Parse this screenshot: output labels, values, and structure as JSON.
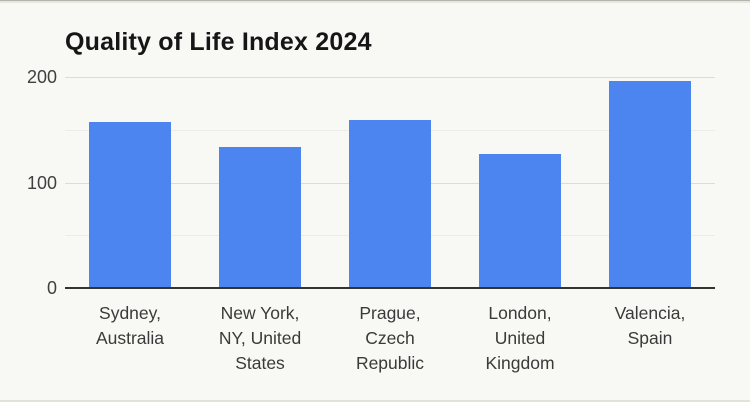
{
  "page": {
    "background": "#ffffff",
    "card_background": "#f8f8f5",
    "card_top_border": "#b3b3ad",
    "card_bottom_border": "#e2e2da"
  },
  "chart_data": {
    "type": "bar",
    "title": "Quality of Life Index 2024",
    "categories": [
      "Sydney, Australia",
      "New York, NY, United States",
      "Prague, Czech Republic",
      "London, United Kingdom",
      "Valencia, Spain"
    ],
    "category_label_lines": [
      [
        "Sydney,",
        "Australia"
      ],
      [
        "New York,",
        "NY, United",
        "States"
      ],
      [
        "Prague,",
        "Czech",
        "Republic"
      ],
      [
        "London,",
        "United",
        "Kingdom"
      ],
      [
        "Valencia,",
        "Spain"
      ]
    ],
    "values": [
      157,
      134,
      159,
      127,
      196
    ],
    "xlabel": "",
    "ylabel": "",
    "ylim": [
      0,
      200
    ],
    "grid": "on",
    "legend": "none",
    "y_axis": {
      "ticks": [
        {
          "value": 0,
          "label": "0"
        },
        {
          "value": 100,
          "label": "100"
        },
        {
          "value": 200,
          "label": "200"
        }
      ],
      "minor_gridlines": [
        50,
        150
      ]
    },
    "colors": {
      "bar": "#4d85f0",
      "axis_line": "#333333",
      "major_grid": "#dcdcda",
      "minor_grid": "#ececea",
      "tick_label": "#404040",
      "category_label": "#3a3a3a",
      "title": "#161616"
    }
  }
}
